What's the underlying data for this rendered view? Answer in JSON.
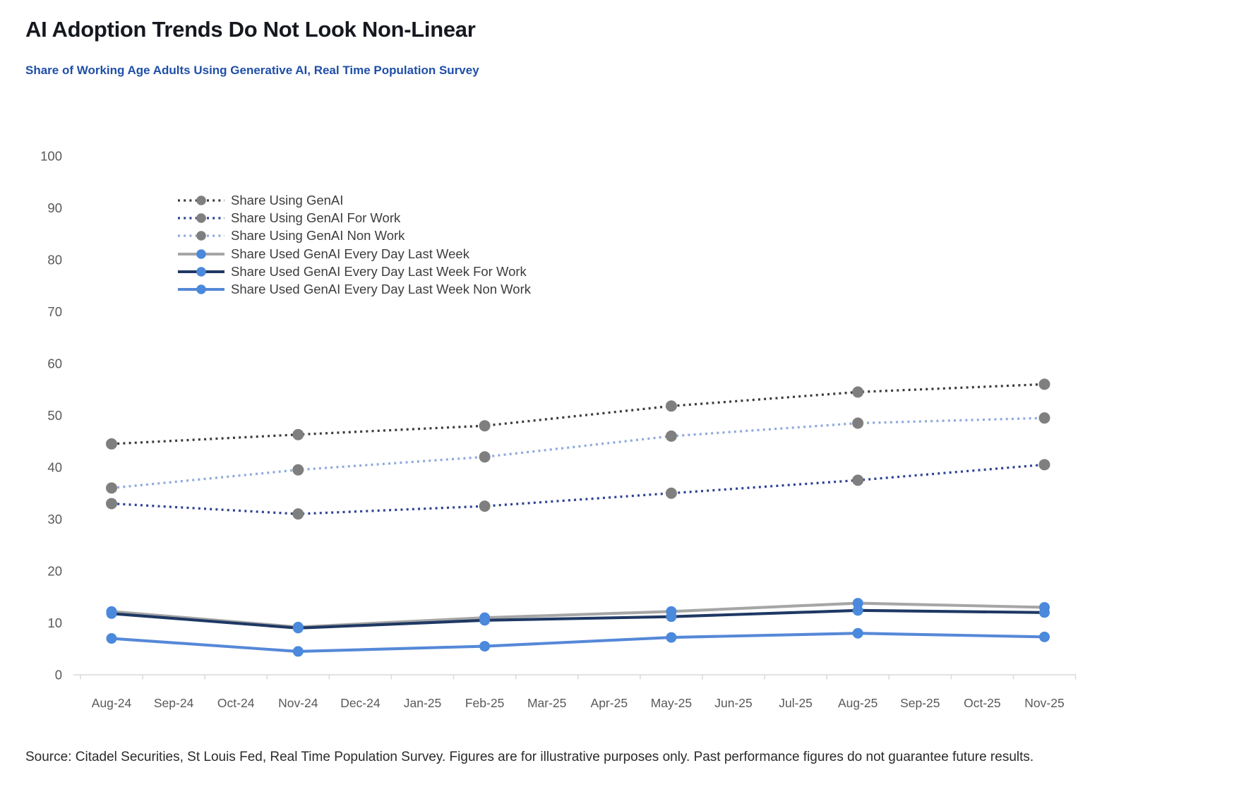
{
  "header": {
    "title": "AI Adoption Trends Do Not Look Non-Linear",
    "subtitle": "Share of Working Age Adults Using Generative AI, Real Time Population Survey"
  },
  "footer": {
    "source": "Source: Citadel Securities, St Louis Fed, Real Time Population Survey. Figures are for illustrative purposes only. Past performance figures do not guarantee future results."
  },
  "chart_data": {
    "type": "line",
    "title": "Share of Working Age Adults Using Generative AI, Real Time Population Survey",
    "x_labels": [
      "Aug-24",
      "Sep-24",
      "Oct-24",
      "Nov-24",
      "Dec-24",
      "Jan-25",
      "Feb-25",
      "Mar-25",
      "Apr-25",
      "May-25",
      "Jun-25",
      "Jul-25",
      "Aug-25",
      "Sep-25",
      "Oct-25",
      "Nov-25"
    ],
    "value_month_indices": [
      0,
      3,
      6,
      9,
      12,
      15
    ],
    "value_months": [
      "Aug-24",
      "Nov-24",
      "Feb-25",
      "May-25",
      "Aug-25",
      "Nov-25"
    ],
    "ylim": [
      0,
      100
    ],
    "y_ticks": [
      0,
      10,
      20,
      30,
      40,
      50,
      60,
      70,
      80,
      90,
      100
    ],
    "grid": false,
    "legend_position": "upper-left-inside",
    "axis_color": "#d9d9d9",
    "tick_label_color": "#595959",
    "series": [
      {
        "name": "Share Using GenAI",
        "style": "dotted",
        "line_color": "#3c3c3c",
        "marker_color": "#7f7f7f",
        "values": [
          44.5,
          46.3,
          48.0,
          51.8,
          54.5,
          56.0
        ]
      },
      {
        "name": "Share Using GenAI For Work",
        "style": "dotted",
        "line_color": "#2e4393",
        "marker_color": "#7f7f7f",
        "values": [
          33.0,
          31.0,
          32.5,
          35.0,
          37.5,
          40.5
        ]
      },
      {
        "name": "Share Using GenAI Non Work",
        "style": "dotted",
        "line_color": "#8faadc",
        "marker_color": "#7f7f7f",
        "values": [
          36.0,
          39.5,
          42.0,
          46.0,
          48.5,
          49.5
        ]
      },
      {
        "name": "Share Used GenAI Every Day Last Week",
        "style": "solid",
        "line_color": "#a6a6a6",
        "marker_color": "#4a89dc",
        "values": [
          12.2,
          9.2,
          11.0,
          12.2,
          13.8,
          13.0
        ]
      },
      {
        "name": "Share Used GenAI Every Day Last Week For Work",
        "style": "solid",
        "line_color": "#1f3864",
        "marker_color": "#4a89dc",
        "values": [
          11.8,
          9.0,
          10.5,
          11.2,
          12.4,
          12.0
        ]
      },
      {
        "name": "Share Used GenAI Every Day Last Week Non Work",
        "style": "solid",
        "line_color": "#5588d8",
        "marker_color": "#4a89dc",
        "values": [
          7.0,
          4.5,
          5.5,
          7.2,
          8.0,
          7.3
        ]
      }
    ]
  }
}
